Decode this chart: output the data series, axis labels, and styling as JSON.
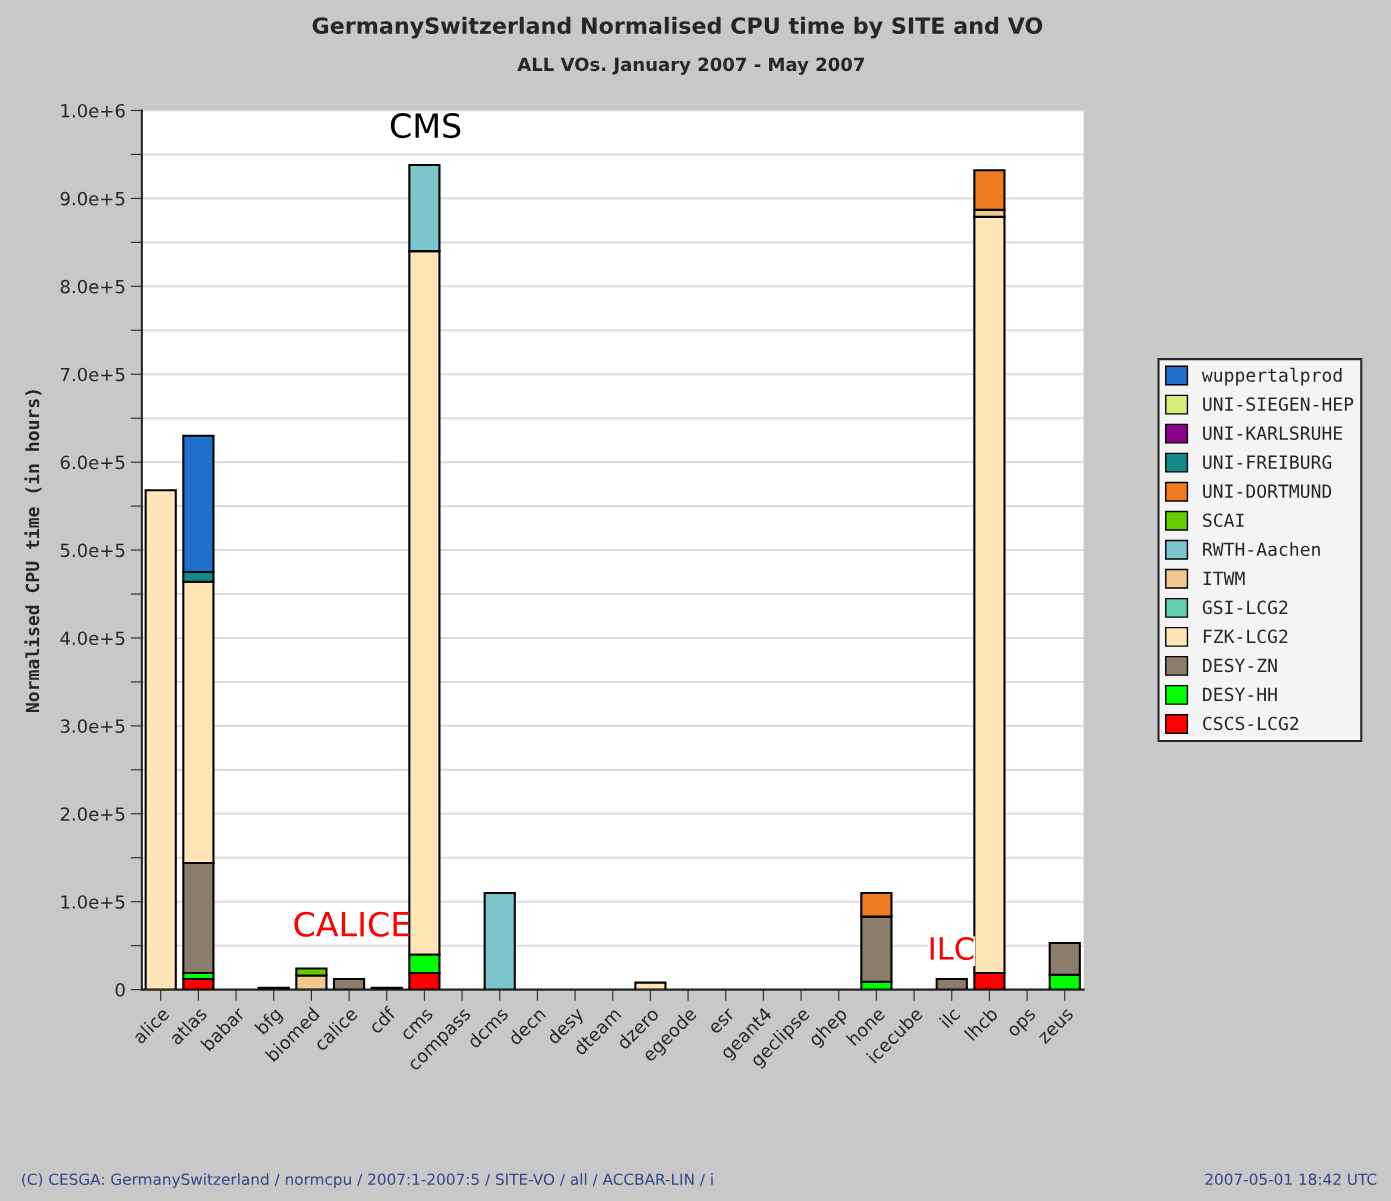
{
  "chart_data": {
    "type": "bar",
    "stacked": true,
    "title": "GermanySwitzerland Normalised CPU time by SITE and VO",
    "subtitle": "ALL VOs. January 2007 - May 2007",
    "ylabel": "Normalised CPU time (in hours)",
    "categories": [
      "alice",
      "atlas",
      "babar",
      "bfg",
      "biomed",
      "calice",
      "cdf",
      "cms",
      "compass",
      "dcms",
      "decn",
      "desy",
      "dteam",
      "dzero",
      "egeode",
      "esr",
      "geant4",
      "geclipse",
      "ghep",
      "hone",
      "icecube",
      "ilc",
      "lhcb",
      "ops",
      "zeus"
    ],
    "series": [
      {
        "name": "CSCS-LCG2",
        "color": "#ff0000",
        "values": [
          null,
          12000,
          null,
          null,
          null,
          null,
          null,
          19000,
          null,
          null,
          null,
          null,
          null,
          null,
          null,
          null,
          null,
          null,
          null,
          null,
          null,
          null,
          19000,
          null,
          null
        ]
      },
      {
        "name": "DESY-HH",
        "color": "#00ff00",
        "values": [
          null,
          7000,
          null,
          null,
          null,
          null,
          null,
          21000,
          null,
          null,
          null,
          null,
          null,
          null,
          null,
          null,
          null,
          null,
          null,
          9000,
          null,
          null,
          null,
          null,
          17000
        ]
      },
      {
        "name": "DESY-ZN",
        "color": "#8b7d6b",
        "values": [
          null,
          125000,
          null,
          2000,
          null,
          12000,
          2000,
          null,
          null,
          null,
          null,
          null,
          null,
          null,
          null,
          null,
          null,
          null,
          null,
          74000,
          null,
          12000,
          null,
          null,
          36000
        ]
      },
      {
        "name": "FZK-LCG2",
        "color": "#ffe4b5",
        "values": [
          568000,
          320000,
          null,
          null,
          null,
          null,
          null,
          800000,
          null,
          null,
          null,
          null,
          null,
          8000,
          null,
          null,
          null,
          null,
          null,
          null,
          null,
          null,
          860000,
          null,
          null
        ]
      },
      {
        "name": "GSI-LCG2",
        "color": "#66ccb0",
        "values": [
          null,
          null,
          null,
          null,
          null,
          null,
          null,
          null,
          null,
          null,
          null,
          null,
          null,
          null,
          null,
          null,
          null,
          null,
          null,
          null,
          null,
          null,
          null,
          null,
          null
        ]
      },
      {
        "name": "ITWM",
        "color": "#f0c890",
        "values": [
          null,
          null,
          null,
          null,
          16000,
          null,
          null,
          null,
          null,
          null,
          null,
          null,
          null,
          null,
          null,
          null,
          null,
          null,
          null,
          null,
          null,
          null,
          8000,
          null,
          null
        ]
      },
      {
        "name": "RWTH-Aachen",
        "color": "#7cc5cc",
        "values": [
          null,
          null,
          null,
          null,
          null,
          null,
          null,
          98000,
          null,
          110000,
          null,
          null,
          null,
          null,
          null,
          null,
          null,
          null,
          null,
          null,
          null,
          null,
          null,
          null,
          null
        ]
      },
      {
        "name": "SCAI",
        "color": "#66cc00",
        "values": [
          null,
          null,
          null,
          null,
          8000,
          null,
          null,
          null,
          null,
          null,
          null,
          null,
          null,
          null,
          null,
          null,
          null,
          null,
          null,
          null,
          null,
          null,
          null,
          null,
          null
        ]
      },
      {
        "name": "UNI-DORTMUND",
        "color": "#f07a20",
        "values": [
          null,
          null,
          null,
          null,
          null,
          null,
          null,
          null,
          null,
          null,
          null,
          null,
          null,
          null,
          null,
          null,
          null,
          null,
          null,
          27000,
          null,
          null,
          45000,
          null,
          null
        ]
      },
      {
        "name": "UNI-FREIBURG",
        "color": "#138a8a",
        "values": [
          null,
          11000,
          null,
          null,
          null,
          null,
          null,
          null,
          null,
          null,
          null,
          null,
          null,
          null,
          null,
          null,
          null,
          null,
          null,
          null,
          null,
          null,
          null,
          null,
          null
        ]
      },
      {
        "name": "UNI-KARLSRUHE",
        "color": "#8b008b",
        "values": [
          null,
          null,
          null,
          null,
          null,
          null,
          null,
          null,
          null,
          null,
          null,
          null,
          null,
          null,
          null,
          null,
          null,
          null,
          null,
          null,
          null,
          null,
          null,
          null,
          null
        ]
      },
      {
        "name": "UNI-SIEGEN-HEP",
        "color": "#d4f07a",
        "values": [
          null,
          null,
          null,
          null,
          null,
          null,
          null,
          null,
          null,
          null,
          null,
          null,
          null,
          null,
          null,
          null,
          null,
          null,
          null,
          null,
          null,
          null,
          null,
          null,
          null
        ]
      },
      {
        "name": "wuppertalprod",
        "color": "#1f6fcf",
        "values": [
          null,
          155000,
          null,
          null,
          null,
          null,
          null,
          null,
          null,
          null,
          null,
          null,
          null,
          null,
          null,
          null,
          null,
          null,
          null,
          null,
          null,
          null,
          null,
          null,
          null
        ]
      }
    ],
    "ylim": [
      0,
      1000000
    ],
    "yticks": [
      0,
      {
        "value": 50000,
        "label": null
      },
      {
        "value": 100000,
        "label": "1.0e+5"
      },
      {
        "value": 150000,
        "label": null
      },
      {
        "value": 200000,
        "label": "2.0e+5"
      },
      {
        "value": 250000,
        "label": null
      },
      {
        "value": 300000,
        "label": "3.0e+5"
      },
      {
        "value": 350000,
        "label": null
      },
      {
        "value": 400000,
        "label": "4.0e+5"
      },
      {
        "value": 450000,
        "label": null
      },
      {
        "value": 500000,
        "label": "5.0e+5"
      },
      {
        "value": 550000,
        "label": null
      },
      {
        "value": 600000,
        "label": "6.0e+5"
      },
      {
        "value": 650000,
        "label": null
      },
      {
        "value": 700000,
        "label": "7.0e+5"
      },
      {
        "value": 750000,
        "label": null
      },
      {
        "value": 800000,
        "label": "8.0e+5"
      },
      {
        "value": 850000,
        "label": null
      },
      {
        "value": 900000,
        "label": "9.0e+5"
      },
      {
        "value": 950000,
        "label": null
      },
      {
        "value": 1000000,
        "label": "1.0e+6"
      }
    ],
    "grid": "y",
    "legend": "right",
    "annotations": [
      "CMS",
      "CALICE",
      "ILC",
      "(C) CESGA: GermanySwitzerland / normcpu / 2007:1-2007:5 / SITE-VO / all / ACCBAR-LIN / i",
      "2007-05-01 18:42 UTC"
    ]
  }
}
